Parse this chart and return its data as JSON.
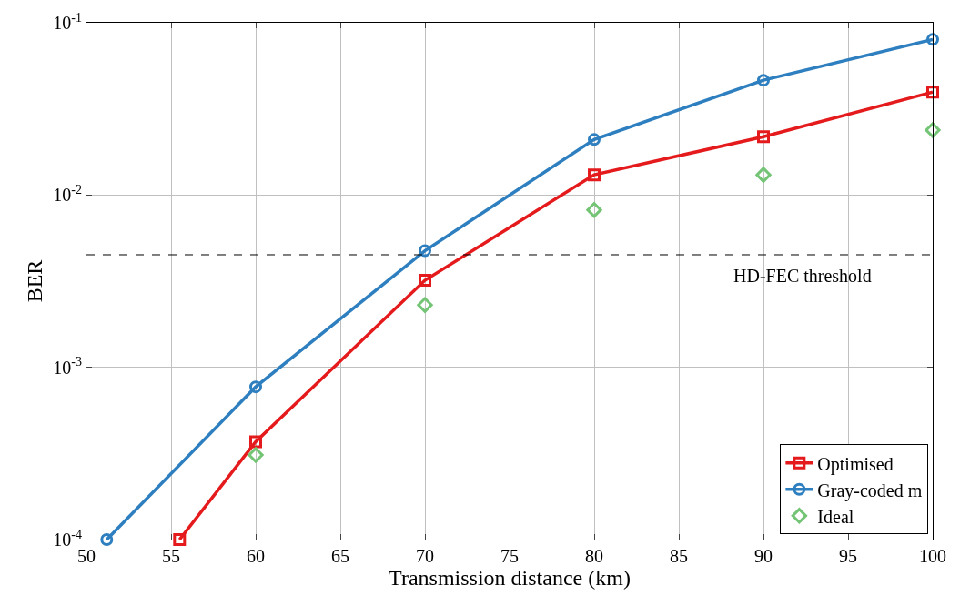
{
  "chart_data": {
    "type": "line",
    "xlabel": "Transmission distance (km)",
    "ylabel": "BER",
    "log": "y",
    "grid": true,
    "legend": "bottom right",
    "xlim": [
      50,
      100
    ],
    "xticks": [
      50,
      55,
      60,
      65,
      70,
      75,
      80,
      85,
      90,
      95,
      100
    ],
    "ylim": [
      0.0001,
      0.1
    ],
    "yticks": [
      {
        "value": 0.0001,
        "label": "10$^{-4}$"
      },
      {
        "value": 0.001,
        "label": "10$^{-3}$"
      },
      {
        "value": 0.01,
        "label": "10$^{-2}$"
      },
      {
        "value": 0.1,
        "label": "10$^{-1}$"
      }
    ],
    "series": [
      {
        "name": "Optimised",
        "color": "#e41a1c",
        "marker": "square",
        "x": [
          55.5,
          60,
          70,
          80,
          90,
          100
        ],
        "values": [
          0.0001,
          0.00037,
          0.0032,
          0.0131,
          0.0218,
          0.0396
        ]
      },
      {
        "name": "Gray-coded m",
        "color": "#2e7fbf",
        "marker": "circle",
        "x": [
          51.2,
          60,
          70,
          80,
          90,
          100
        ],
        "values": [
          0.0001,
          0.00077,
          0.00475,
          0.021,
          0.0464,
          0.08
        ]
      },
      {
        "name": "Ideal",
        "color": "#74c476",
        "type": "scatter",
        "marker": "diamond",
        "x": [
          60,
          70,
          80,
          90,
          100
        ],
        "values": [
          0.00031,
          0.0023,
          0.0082,
          0.0131,
          0.0238
        ]
      }
    ],
    "ref_lines": [
      {
        "axis": "y",
        "value": 0.0045,
        "label": "HD-FEC threshold",
        "color": "#000000",
        "line_style": "dashed"
      }
    ]
  }
}
